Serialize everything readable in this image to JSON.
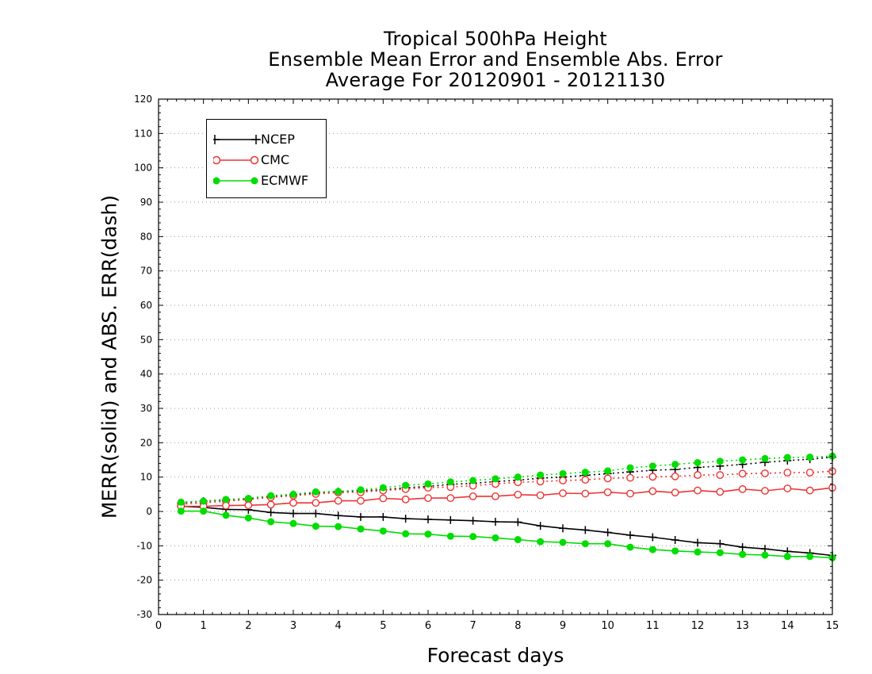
{
  "title": {
    "line1": "Tropical 500hPa Height",
    "line2": "Ensemble Mean Error and Ensemble Abs. Error",
    "line3": "Average For 20120901 - 20121130"
  },
  "chart_data": {
    "type": "line",
    "title": "Tropical 500hPa Height / Ensemble Mean Error and Ensemble Abs. Error / Average For 20120901 - 20121130",
    "xlabel": "Forecast days",
    "ylabel": "MERR(solid) and ABS. ERR(dash)",
    "xlim": [
      0,
      15
    ],
    "ylim": [
      -30,
      120
    ],
    "xticks": [
      0,
      1,
      2,
      3,
      4,
      5,
      6,
      7,
      8,
      9,
      10,
      11,
      12,
      13,
      14,
      15
    ],
    "yticks": [
      -30,
      -20,
      -10,
      0,
      10,
      20,
      30,
      40,
      50,
      60,
      70,
      80,
      90,
      100,
      110,
      120
    ],
    "grid": true,
    "legend_position": "top-left",
    "x": [
      0.5,
      1,
      1.5,
      2,
      2.5,
      3,
      3.5,
      4,
      4.5,
      5,
      5.5,
      6,
      6.5,
      7,
      7.5,
      8,
      8.5,
      9,
      9.5,
      10,
      10.5,
      11,
      11.5,
      12,
      12.5,
      13,
      13.5,
      14,
      14.5,
      15
    ],
    "series": [
      {
        "name": "NCEP",
        "color": "#000000",
        "marker": "plus",
        "merr": [
          1.5,
          1.2,
          0.6,
          0.5,
          -0.3,
          -0.6,
          -0.6,
          -1.2,
          -1.6,
          -1.6,
          -2.1,
          -2.3,
          -2.5,
          -2.7,
          -3.0,
          -3.1,
          -4.2,
          -4.9,
          -5.4,
          -6.1,
          -6.9,
          -7.5,
          -8.3,
          -9.1,
          -9.4,
          -10.4,
          -10.9,
          -11.6,
          -12.1,
          -12.8
        ],
        "abs_err": [
          2.5,
          3.0,
          3.3,
          3.6,
          4.4,
          4.9,
          5.4,
          5.8,
          6.0,
          6.3,
          6.9,
          7.3,
          7.9,
          8.2,
          8.7,
          9.1,
          9.7,
          10.0,
          10.5,
          11.0,
          11.5,
          12.0,
          12.2,
          12.8,
          13.2,
          13.7,
          14.3,
          14.8,
          15.2,
          15.8
        ]
      },
      {
        "name": "CMC",
        "color": "#ee3333",
        "marker": "open-circle",
        "merr": [
          1.5,
          1.5,
          1.7,
          1.8,
          2.0,
          2.5,
          2.5,
          3.1,
          3.1,
          3.8,
          3.5,
          3.9,
          3.9,
          4.4,
          4.4,
          4.9,
          4.7,
          5.3,
          5.2,
          5.6,
          5.2,
          5.9,
          5.5,
          6.1,
          5.7,
          6.5,
          6.0,
          6.7,
          6.1,
          6.9
        ],
        "abs_err": [
          2.1,
          2.5,
          3.0,
          3.5,
          4.1,
          4.6,
          5.1,
          5.5,
          5.6,
          6.1,
          6.5,
          6.9,
          7.1,
          7.5,
          8.0,
          8.5,
          8.7,
          9.0,
          9.2,
          9.6,
          9.8,
          10.1,
          10.2,
          10.6,
          10.6,
          11.0,
          11.1,
          11.3,
          11.3,
          11.7
        ]
      },
      {
        "name": "ECMWF",
        "color": "#00dd00",
        "marker": "filled-circle",
        "merr": [
          0.1,
          0.1,
          -1.1,
          -1.9,
          -3.0,
          -3.5,
          -4.3,
          -4.4,
          -5.1,
          -5.7,
          -6.5,
          -6.6,
          -7.2,
          -7.3,
          -7.7,
          -8.2,
          -8.8,
          -9.0,
          -9.4,
          -9.4,
          -10.4,
          -11.1,
          -11.5,
          -11.8,
          -12.0,
          -12.5,
          -12.7,
          -13.1,
          -13.1,
          -13.5
        ],
        "abs_err": [
          2.7,
          3.0,
          3.5,
          3.8,
          4.6,
          5.0,
          5.7,
          5.8,
          6.3,
          6.9,
          7.6,
          8.0,
          8.6,
          9.0,
          9.5,
          10.0,
          10.6,
          11.0,
          11.4,
          11.8,
          12.7,
          13.2,
          13.7,
          14.2,
          14.6,
          15.0,
          15.4,
          15.7,
          15.8,
          16.1
        ]
      }
    ]
  }
}
